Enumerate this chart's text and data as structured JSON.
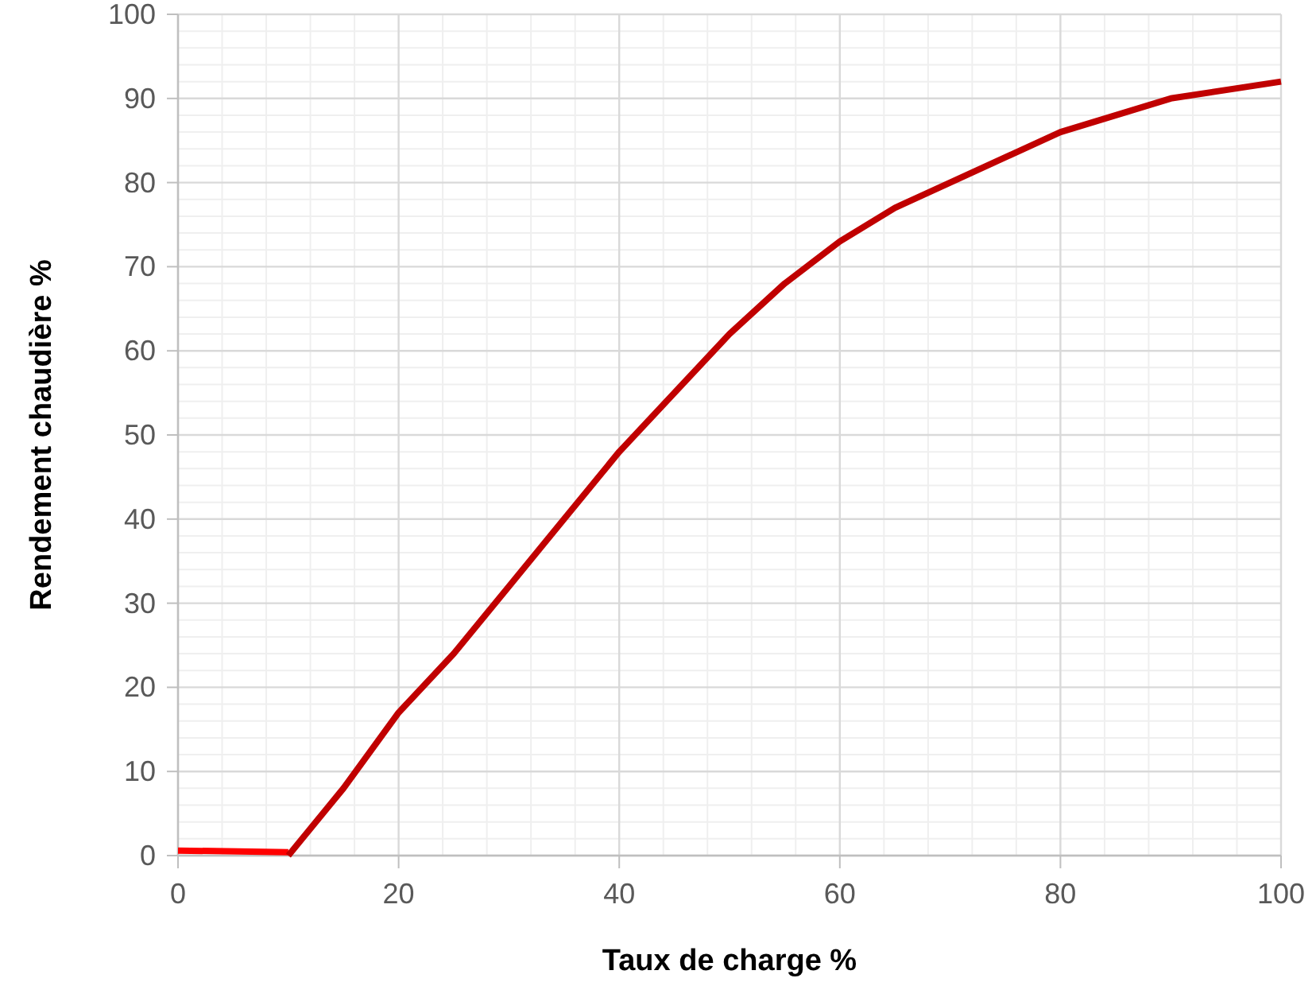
{
  "chart_data": {
    "type": "line",
    "xlabel": "Taux de charge %",
    "ylabel": "Rendement chaudière %",
    "xlim": [
      0,
      100
    ],
    "xticks": [
      0,
      20,
      40,
      60,
      80,
      100
    ],
    "ylim": [
      0,
      100
    ],
    "yticks": [
      0,
      10,
      20,
      30,
      40,
      50,
      60,
      70,
      80,
      90,
      100
    ],
    "grid": true,
    "marker": "none",
    "line_style": "solid",
    "series": [
      {
        "color": "#ff0000",
        "x": [
          0,
          10
        ],
        "values": [
          0.6,
          0.4
        ]
      },
      {
        "color": "#c00000",
        "x": [
          10,
          15,
          20,
          25,
          30,
          35,
          40,
          50,
          55,
          60,
          65,
          70,
          80,
          90,
          100
        ],
        "values": [
          0,
          8,
          17,
          24,
          32,
          40,
          48,
          62,
          68,
          73,
          77,
          80,
          86,
          90,
          92
        ]
      }
    ]
  }
}
